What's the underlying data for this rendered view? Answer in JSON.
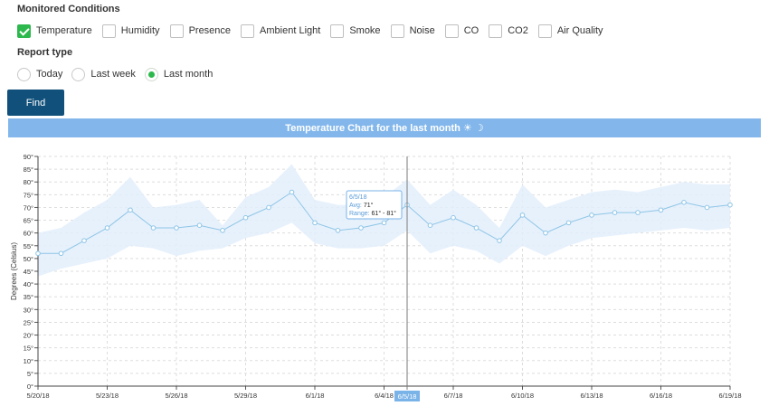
{
  "conditions": {
    "title": "Monitored Conditions",
    "items": [
      {
        "label": "Temperature",
        "checked": true
      },
      {
        "label": "Humidity",
        "checked": false
      },
      {
        "label": "Presence",
        "checked": false
      },
      {
        "label": "Ambient Light",
        "checked": false
      },
      {
        "label": "Smoke",
        "checked": false
      },
      {
        "label": "Noise",
        "checked": false
      },
      {
        "label": "CO",
        "checked": false
      },
      {
        "label": "CO2",
        "checked": false
      },
      {
        "label": "Air Quality",
        "checked": false
      }
    ]
  },
  "report": {
    "title": "Report type",
    "options": [
      {
        "label": "Today",
        "checked": false
      },
      {
        "label": "Last week",
        "checked": false
      },
      {
        "label": "Last month",
        "checked": true
      }
    ]
  },
  "find_label": "Find",
  "colors": {
    "accent_green": "#2db84d",
    "button_blue": "#11507a",
    "header_blue": "#83b7eb",
    "line": "#8ec5e6",
    "band": "#e3effb",
    "tooltip_border": "#7ab3e8"
  },
  "chart_data": {
    "type": "line",
    "title": "Temperature Chart for the last month ☀ ☽",
    "xlabel": "",
    "ylabel": "Degrees (Celsius)",
    "ylim": [
      0,
      90
    ],
    "yticks": [
      "0°",
      "5°",
      "10°",
      "15°",
      "20°",
      "25°",
      "30°",
      "35°",
      "40°",
      "45°",
      "50°",
      "55°",
      "60°",
      "65°",
      "70°",
      "75°",
      "80°",
      "85°",
      "90°"
    ],
    "x": [
      "5/20/18",
      "5/21/18",
      "5/22/18",
      "5/23/18",
      "5/24/18",
      "5/25/18",
      "5/26/18",
      "5/27/18",
      "5/28/18",
      "5/29/18",
      "5/30/18",
      "5/31/18",
      "6/1/18",
      "6/2/18",
      "6/3/18",
      "6/4/18",
      "6/5/18",
      "6/6/18",
      "6/7/18",
      "6/8/18",
      "6/9/18",
      "6/10/18",
      "6/11/18",
      "6/12/18",
      "6/13/18",
      "6/14/18",
      "6/15/18",
      "6/16/18",
      "6/17/18",
      "6/18/18",
      "6/19/18"
    ],
    "xtick_labels": [
      "5/20/18",
      "5/23/18",
      "5/26/18",
      "5/29/18",
      "6/1/18",
      "6/4/18",
      "6/7/18",
      "6/10/18",
      "6/13/18",
      "6/16/18",
      "6/19/18"
    ],
    "series": [
      {
        "values": [
          52,
          52,
          57,
          62,
          69,
          62,
          62,
          63,
          61,
          66,
          70,
          76,
          64,
          61,
          62,
          64,
          71,
          63,
          66,
          62,
          57,
          67,
          60,
          64,
          67,
          68,
          68,
          69,
          72,
          70,
          71
        ]
      }
    ],
    "range_low": [
      43,
      46,
      48,
      50,
      55,
      54,
      51,
      53,
      54,
      58,
      60,
      64,
      56,
      54,
      54,
      55,
      61,
      52,
      55,
      53,
      48,
      55,
      51,
      55,
      58,
      59,
      60,
      61,
      62,
      61,
      62
    ],
    "range_high": [
      60,
      62,
      68,
      73,
      82,
      70,
      71,
      73,
      63,
      74,
      78,
      87,
      73,
      71,
      71,
      74,
      81,
      71,
      77,
      71,
      62,
      79,
      70,
      73,
      76,
      77,
      76,
      78,
      80,
      79,
      79
    ],
    "tooltip": {
      "date": "6/5/18",
      "avg_label": "Avg:",
      "avg_value": "71°",
      "range_label": "Range:",
      "range_value": "61° - 81°"
    },
    "crosshair_label": "6/5/18",
    "grid": true
  }
}
